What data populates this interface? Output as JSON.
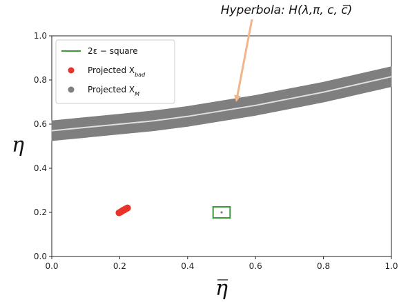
{
  "chart_data": {
    "type": "scatter",
    "xlabel": "η̅",
    "ylabel": "η",
    "xlim": [
      0.0,
      1.0
    ],
    "ylim": [
      0.0,
      1.0
    ],
    "xticks": [
      "0.0",
      "0.2",
      "0.4",
      "0.6",
      "0.8",
      "1.0"
    ],
    "yticks": [
      "0.0",
      "0.2",
      "0.4",
      "0.6",
      "0.8",
      "1.0"
    ],
    "grid": false,
    "legend_position": "top-left",
    "legend": [
      {
        "label": "2ε − square",
        "marker": "line",
        "color": "#3a9a3a"
      },
      {
        "label": "Projected X",
        "subscript": "bad",
        "marker": "circle",
        "color": "#e8332a"
      },
      {
        "label": "Projected X",
        "subscript": "M",
        "marker": "circle",
        "color": "#7f7f7f"
      }
    ],
    "series": [
      {
        "name": "Projected X_M",
        "kind": "band",
        "color": "#7f7f7f",
        "centerline_color": "#e0e0e0",
        "x": [
          0.0,
          0.1,
          0.2,
          0.3,
          0.4,
          0.5,
          0.6,
          0.7,
          0.8,
          0.9,
          1.0
        ],
        "y_center": [
          0.57,
          0.585,
          0.6,
          0.615,
          0.635,
          0.66,
          0.685,
          0.715,
          0.745,
          0.78,
          0.815
        ],
        "half_width": 0.045
      },
      {
        "name": "Projected X_bad",
        "kind": "points",
        "color": "#e8332a",
        "x": [
          0.198,
          0.202,
          0.205,
          0.208,
          0.211,
          0.214,
          0.217,
          0.22,
          0.223
        ],
        "y": [
          0.198,
          0.201,
          0.204,
          0.207,
          0.21,
          0.212,
          0.215,
          0.217,
          0.22
        ]
      },
      {
        "name": "2ε − square",
        "kind": "square",
        "color": "#3a9a3a",
        "center": [
          0.5,
          0.2
        ],
        "half_side": 0.025,
        "point_color": "#7f7f7f"
      }
    ],
    "annotation": {
      "text": "Hyperbola: H(λ,π, c, c̅)",
      "points_to": [
        0.54,
        0.69
      ],
      "arrow_color": "#f2b48a"
    }
  }
}
